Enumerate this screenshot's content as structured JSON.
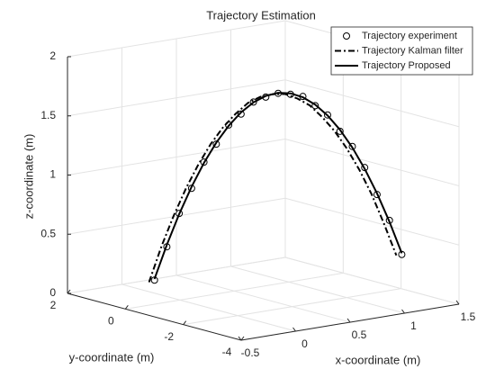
{
  "chart_data": {
    "type": "line3d",
    "title": "Trajectory Estimation",
    "xlabel": "x-coordinate (m)",
    "ylabel": "y-coordinate (m)",
    "zlabel": "z-coordinate (m)",
    "xlim": [
      -0.5,
      1.5
    ],
    "ylim": [
      -4,
      2
    ],
    "zlim": [
      0,
      2
    ],
    "xticks": [
      -0.5,
      0,
      0.5,
      1,
      1.5
    ],
    "yticks": [
      -4,
      -2,
      0,
      2
    ],
    "zticks": [
      0,
      0.5,
      1,
      1.5,
      2
    ],
    "grid": true,
    "legend": "northeast",
    "series": [
      {
        "name": "Trajectory experiment",
        "color": "#000000",
        "marker": "o",
        "linestyle": "none",
        "x": [
          -0.1,
          -0.025,
          0.05,
          0.125,
          0.2,
          0.275,
          0.35,
          0.425,
          0.5,
          0.575,
          0.65,
          0.725,
          0.8,
          0.875,
          0.95,
          1.025,
          1.1,
          1.175,
          1.25,
          1.325,
          1.4
        ],
        "y": [
          0.5,
          0.355,
          0.21,
          0.065,
          -0.08,
          -0.225,
          -0.37,
          -0.515,
          -0.66,
          -0.805,
          -0.95,
          -1.095,
          -1.24,
          -1.385,
          -1.53,
          -1.675,
          -1.82,
          -1.965,
          -2.11,
          -2.255,
          -2.4
        ],
        "z": [
          0.15,
          0.43,
          0.71,
          0.92,
          1.14,
          1.29,
          1.45,
          1.54,
          1.64,
          1.68,
          1.71,
          1.7,
          1.68,
          1.6,
          1.52,
          1.38,
          1.25,
          1.07,
          0.84,
          0.62,
          0.33
        ]
      },
      {
        "name": "Trajectory Kalman filter",
        "color": "#000000",
        "marker": "none",
        "linestyle": "-.",
        "x": [
          -0.15,
          -0.075,
          0.0,
          0.075,
          0.15,
          0.225,
          0.3,
          0.375,
          0.45,
          0.525,
          0.6,
          0.675,
          0.75,
          0.825,
          0.9,
          0.975,
          1.05,
          1.125,
          1.2,
          1.275,
          1.35
        ],
        "y": [
          0.5,
          0.355,
          0.21,
          0.065,
          -0.08,
          -0.225,
          -0.37,
          -0.515,
          -0.66,
          -0.805,
          -0.95,
          -1.095,
          -1.24,
          -1.385,
          -1.53,
          -1.675,
          -1.82,
          -1.965,
          -2.11,
          -2.255,
          -2.4
        ],
        "z": [
          0.14,
          0.44,
          0.7,
          0.93,
          1.13,
          1.3,
          1.44,
          1.55,
          1.64,
          1.69,
          1.71,
          1.71,
          1.67,
          1.61,
          1.51,
          1.39,
          1.24,
          1.06,
          0.85,
          0.6,
          0.33
        ]
      },
      {
        "name": "Trajectory Proposed",
        "color": "#000000",
        "marker": "none",
        "linestyle": "-",
        "x": [
          -0.1,
          -0.025,
          0.05,
          0.125,
          0.2,
          0.275,
          0.35,
          0.425,
          0.5,
          0.575,
          0.65,
          0.725,
          0.8,
          0.875,
          0.95,
          1.025,
          1.1,
          1.175,
          1.25,
          1.325,
          1.4
        ],
        "y": [
          0.5,
          0.355,
          0.21,
          0.065,
          -0.08,
          -0.225,
          -0.37,
          -0.515,
          -0.66,
          -0.805,
          -0.95,
          -1.095,
          -1.24,
          -1.385,
          -1.53,
          -1.675,
          -1.82,
          -1.965,
          -2.11,
          -2.255,
          -2.4
        ],
        "z": [
          0.16,
          0.447,
          0.705,
          0.933,
          1.133,
          1.303,
          1.443,
          1.555,
          1.637,
          1.69,
          1.714,
          1.708,
          1.673,
          1.609,
          1.515,
          1.393,
          1.241,
          1.059,
          0.849,
          0.609,
          0.34
        ]
      }
    ]
  }
}
